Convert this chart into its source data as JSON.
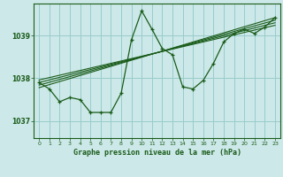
{
  "title": "Graphe pression niveau de la mer (hPa)",
  "background_color": "#cce8e8",
  "grid_color": "#99cccc",
  "line_color": "#1a5c1a",
  "text_color": "#1a5c1a",
  "xlim": [
    -0.5,
    23.5
  ],
  "ylim": [
    1036.6,
    1039.75
  ],
  "yticks": [
    1037,
    1038,
    1039
  ],
  "xticks": [
    0,
    1,
    2,
    3,
    4,
    5,
    6,
    7,
    8,
    9,
    10,
    11,
    12,
    13,
    14,
    15,
    16,
    17,
    18,
    19,
    20,
    21,
    22,
    23
  ],
  "main_line_x": [
    0,
    1,
    2,
    3,
    4,
    5,
    6,
    7,
    8,
    9,
    10,
    11,
    12,
    13,
    14,
    15,
    16,
    17,
    18,
    19,
    20,
    21,
    22,
    23
  ],
  "main_line_y": [
    1037.9,
    1037.75,
    1037.45,
    1037.55,
    1037.5,
    1037.2,
    1037.2,
    1037.2,
    1037.65,
    1038.9,
    1039.58,
    1039.15,
    1038.7,
    1038.55,
    1037.8,
    1037.75,
    1037.95,
    1038.35,
    1038.85,
    1039.05,
    1039.15,
    1039.05,
    1039.2,
    1039.42
  ],
  "smooth_lines": [
    {
      "x": [
        0,
        23
      ],
      "y": [
        1037.78,
        1039.42
      ]
    },
    {
      "x": [
        0,
        23
      ],
      "y": [
        1037.84,
        1039.36
      ]
    },
    {
      "x": [
        0,
        23
      ],
      "y": [
        1037.9,
        1039.3
      ]
    },
    {
      "x": [
        0,
        23
      ],
      "y": [
        1037.96,
        1039.24
      ]
    }
  ]
}
